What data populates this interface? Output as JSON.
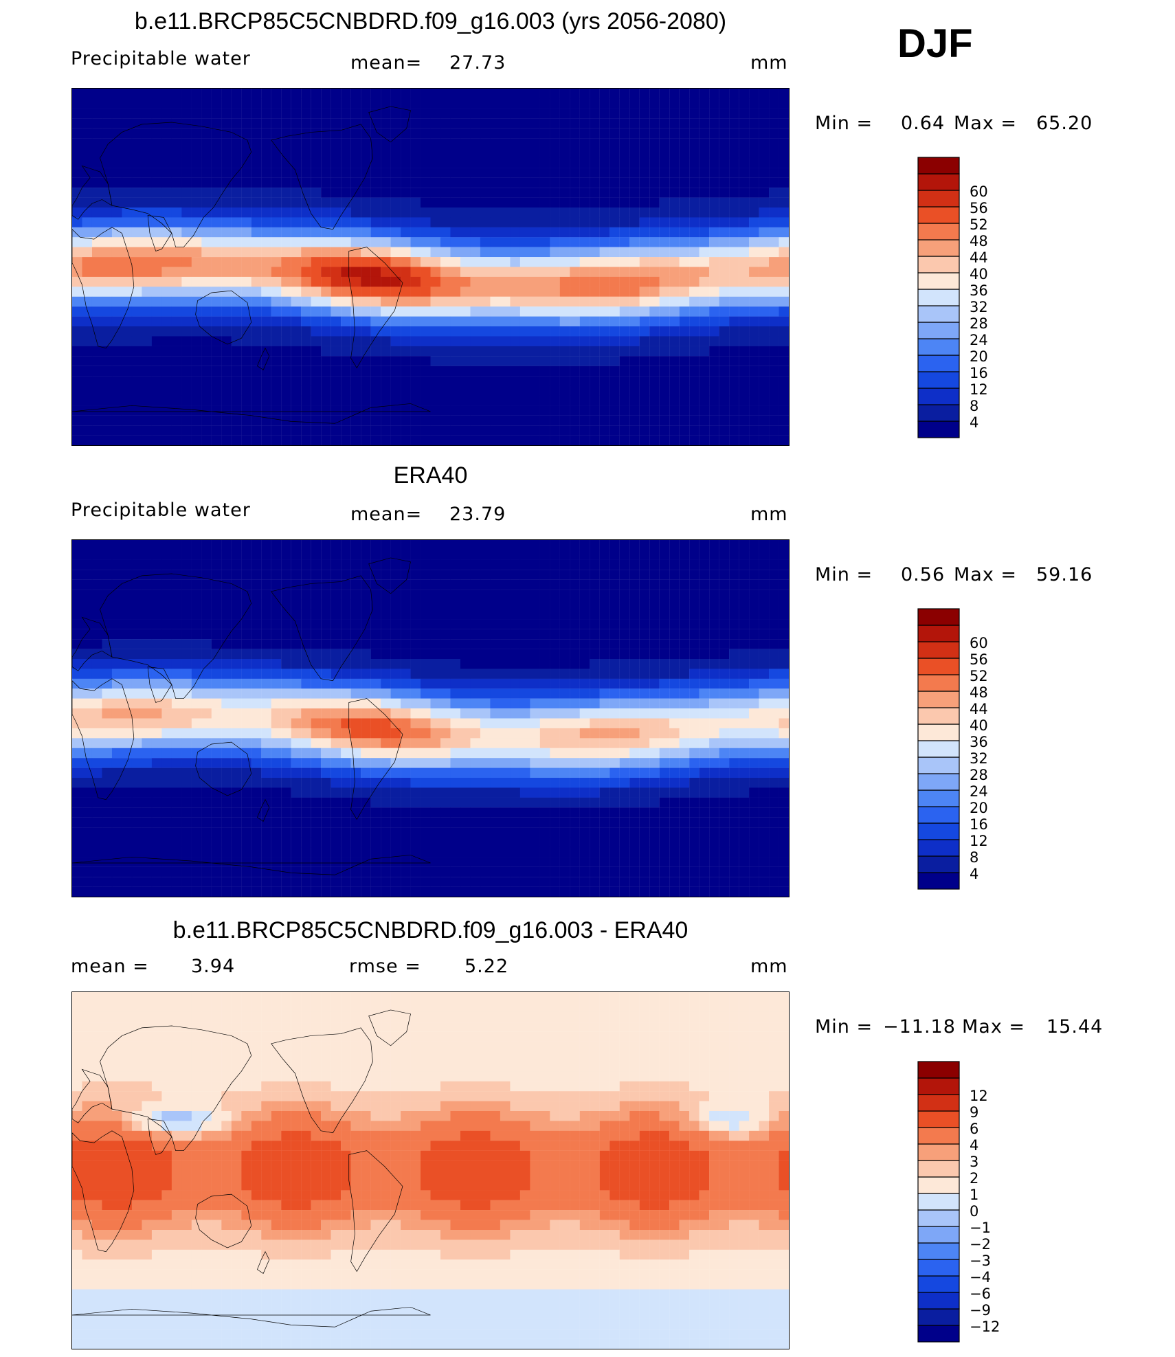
{
  "season": "DJF",
  "units": "mm",
  "colors": {
    "panel_scale": [
      "#00008a",
      "#0a1ea0",
      "#0e2fc8",
      "#1548e0",
      "#2b63f0",
      "#4d85f5",
      "#7ea7f7",
      "#a9c5f9",
      "#d2e4fc",
      "#fde8d8",
      "#fbc8ae",
      "#f7a07a",
      "#f37a4e",
      "#ea5026",
      "#d23015",
      "#b3150a",
      "#8b0000"
    ],
    "diff_scale": [
      "#00008a",
      "#0a1ea0",
      "#0e2fc8",
      "#1548e0",
      "#2b63f0",
      "#4d85f5",
      "#7ea7f7",
      "#a9c5f9",
      "#d2e4fc",
      "#fde8d8",
      "#fbc8ae",
      "#f7a07a",
      "#f37a4e",
      "#ea5026",
      "#d23015",
      "#b3150a",
      "#8b0000"
    ],
    "coast": "#000000"
  },
  "chart_data": [
    {
      "type": "heatmap",
      "id": "model",
      "title": "b.e11.BRCP85C5CNBDRD.f09_g16.003 (yrs 2056-2080)",
      "variable": "Precipitable water",
      "mean_label": "mean=",
      "mean": "27.73",
      "units": "mm",
      "min_label": "Min =",
      "min": "0.64",
      "max_label": "Max =",
      "max": "65.20",
      "levels": [
        "4",
        "8",
        "12",
        "16",
        "20",
        "24",
        "28",
        "32",
        "36",
        "40",
        "44",
        "48",
        "52",
        "56",
        "60"
      ],
      "field": {
        "eq_peak": 58,
        "eq_base": 32,
        "pole": 3,
        "lon_offset": 0
      }
    },
    {
      "type": "heatmap",
      "id": "obs",
      "title": "ERA40",
      "variable": "Precipitable water",
      "mean_label": "mean=",
      "mean": "23.79",
      "units": "mm",
      "min_label": "Min =",
      "min": "0.56",
      "max_label": "Max =",
      "max": "59.16",
      "levels": [
        "4",
        "8",
        "12",
        "16",
        "20",
        "24",
        "28",
        "32",
        "36",
        "40",
        "44",
        "48",
        "52",
        "56",
        "60"
      ],
      "field": {
        "eq_peak": 50,
        "eq_base": 28,
        "pole": 2.5,
        "lon_offset": 0
      }
    },
    {
      "type": "heatmap",
      "id": "diff",
      "title": "b.e11.BRCP85C5CNBDRD.f09_g16.003 - ERA40",
      "mean_label": "mean =",
      "mean": "3.94",
      "rmse_label": "rmse =",
      "rmse": "5.22",
      "units": "mm",
      "min_label": "Min =",
      "min": "−11.18",
      "max_label": "Max =",
      "max": "15.44",
      "levels": [
        "−12",
        "−9",
        "−6",
        "−4",
        "−3",
        "−2",
        "−1",
        "0",
        "1",
        "2",
        "3",
        "4",
        "6",
        "9",
        "12"
      ],
      "level_values": [
        -12,
        -9,
        -6,
        -4,
        -3,
        -2,
        -1,
        0,
        1,
        2,
        3,
        4,
        6,
        9,
        12
      ]
    }
  ]
}
